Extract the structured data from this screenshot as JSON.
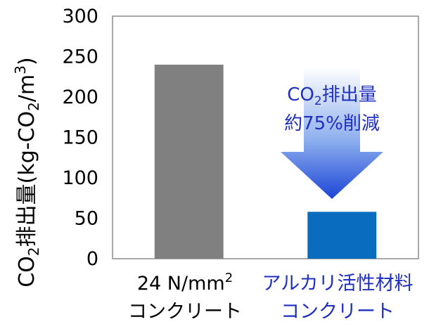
{
  "chart_data": {
    "type": "bar",
    "categories": [
      {
        "line1": "24 N/mm",
        "sup": "2",
        "line2": "コンクリート",
        "color": "#000000"
      },
      {
        "line1": "アルカリ活性材料",
        "sup": "",
        "line2": "コンクリート",
        "color": "#1f2fbf"
      }
    ],
    "values": [
      240,
      58
    ],
    "bar_colors": [
      "#808080",
      "#0a6cbf"
    ],
    "ylim": [
      0,
      300
    ],
    "yticks": [
      "0",
      "50",
      "100",
      "150",
      "200",
      "250",
      "300"
    ],
    "ylabel": {
      "pre": "CO",
      "sub": "2",
      "mid": "排出量(kg-CO",
      "sub2": "2",
      "post": "/m",
      "sup": "3",
      "close": ")"
    },
    "annotation": {
      "pre": "CO",
      "sub": "2",
      "post": "排出量",
      "line2": "約75%削減"
    },
    "grid": false
  }
}
